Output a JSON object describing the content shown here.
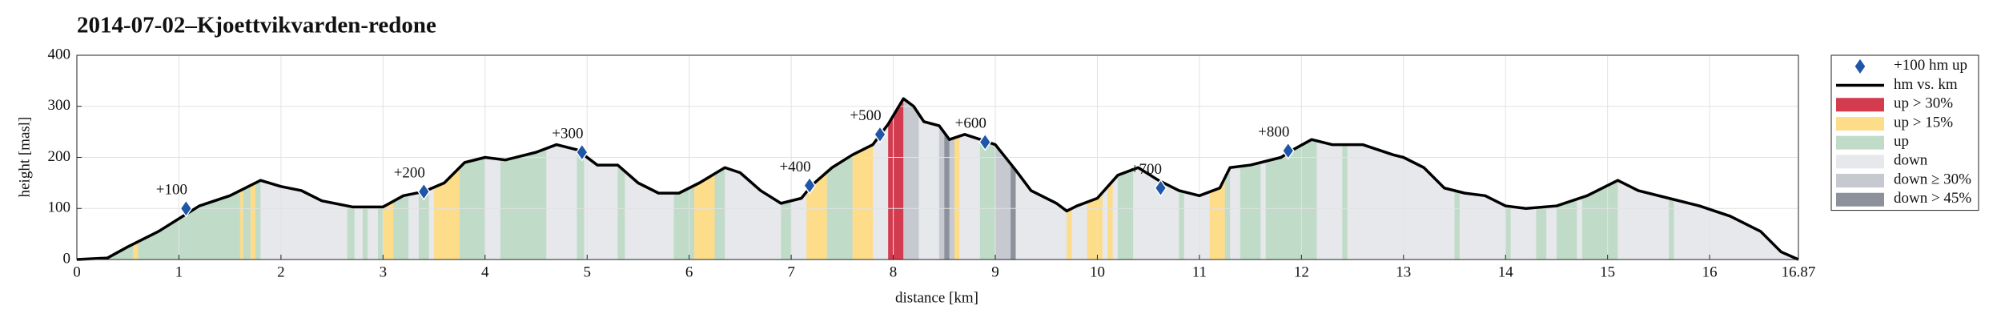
{
  "chart_data": {
    "type": "line",
    "title": "2014-07-02–Kjoettvikvarden-redone",
    "x_label": "distance [km]",
    "y_label": "height [masl]",
    "xlim": [
      0,
      16.87
    ],
    "xticks": [
      0,
      1,
      2,
      3,
      4,
      5,
      6,
      7,
      8,
      9,
      10,
      11,
      12,
      13,
      14,
      15,
      16,
      {
        "value": 16.87,
        "label": "16.87"
      }
    ],
    "ylim": [
      0,
      400
    ],
    "yticks": [
      0,
      100,
      200,
      300,
      400
    ],
    "grid": true,
    "markers": {
      "name": "+100 hm up",
      "color": "#1f56a8",
      "x": [
        1.07,
        3.4,
        4.95,
        7.18,
        7.87,
        8.9,
        10.62,
        11.87
      ],
      "y": [
        100,
        133,
        210,
        145,
        245,
        230,
        140,
        213
      ],
      "labels": [
        "+100",
        "+200",
        "+300",
        "+400",
        "+500",
        "+600",
        "+700",
        "+800"
      ]
    },
    "line": {
      "name": "hm vs. km",
      "color": "#000000",
      "x": [
        0,
        0.3,
        0.5,
        0.8,
        1.0,
        1.2,
        1.5,
        1.8,
        2.0,
        2.2,
        2.4,
        2.7,
        3.0,
        3.2,
        3.4,
        3.6,
        3.8,
        4.0,
        4.2,
        4.5,
        4.7,
        4.9,
        5.1,
        5.3,
        5.5,
        5.7,
        5.9,
        6.1,
        6.35,
        6.5,
        6.7,
        6.9,
        7.1,
        7.2,
        7.4,
        7.6,
        7.8,
        7.95,
        8.1,
        8.2,
        8.3,
        8.45,
        8.55,
        8.7,
        8.9,
        9.0,
        9.2,
        9.35,
        9.6,
        9.7,
        9.8,
        10.0,
        10.2,
        10.4,
        10.6,
        10.8,
        11.0,
        11.2,
        11.3,
        11.5,
        11.8,
        11.9,
        12.1,
        12.3,
        12.6,
        12.9,
        13.0,
        13.2,
        13.4,
        13.6,
        13.8,
        14.0,
        14.2,
        14.5,
        14.8,
        15.0,
        15.1,
        15.3,
        15.6,
        15.9,
        16.2,
        16.5,
        16.7,
        16.87
      ],
      "y": [
        0,
        3,
        25,
        55,
        80,
        105,
        125,
        155,
        143,
        135,
        115,
        103,
        103,
        125,
        133,
        150,
        190,
        200,
        195,
        210,
        225,
        215,
        185,
        185,
        150,
        130,
        130,
        150,
        180,
        170,
        135,
        110,
        120,
        145,
        180,
        205,
        225,
        265,
        315,
        300,
        270,
        262,
        235,
        245,
        232,
        225,
        175,
        135,
        110,
        95,
        105,
        120,
        165,
        180,
        155,
        135,
        125,
        140,
        180,
        185,
        200,
        213,
        235,
        225,
        225,
        205,
        200,
        180,
        140,
        130,
        125,
        105,
        100,
        105,
        125,
        145,
        155,
        135,
        120,
        105,
        85,
        55,
        15,
        0
      ]
    },
    "areas": [
      {
        "name": "up > 30%",
        "color": "#d33c4f",
        "ranges": [
          [
            7.95,
            8.1
          ]
        ]
      },
      {
        "name": "up > 15%",
        "color": "#fddc8a",
        "ranges": [
          [
            0.55,
            0.6
          ],
          [
            1.6,
            1.63
          ],
          [
            1.7,
            1.75
          ],
          [
            3.0,
            3.1
          ],
          [
            3.5,
            3.75
          ],
          [
            6.05,
            6.25
          ],
          [
            7.15,
            7.35
          ],
          [
            7.6,
            7.8
          ],
          [
            8.6,
            8.65
          ],
          [
            9.7,
            9.75
          ],
          [
            9.9,
            10.05
          ],
          [
            10.1,
            10.15
          ],
          [
            11.1,
            11.25
          ]
        ]
      },
      {
        "name": "up",
        "color": "#c0dcc8",
        "ranges": [
          [
            0.3,
            0.55
          ],
          [
            0.6,
            1.6
          ],
          [
            1.63,
            1.7
          ],
          [
            1.75,
            1.8
          ],
          [
            2.65,
            2.72
          ],
          [
            2.8,
            2.85
          ],
          [
            2.95,
            3.0
          ],
          [
            3.1,
            3.25
          ],
          [
            3.35,
            3.45
          ],
          [
            3.75,
            4.0
          ],
          [
            4.15,
            4.6
          ],
          [
            4.9,
            4.97
          ],
          [
            5.3,
            5.37
          ],
          [
            5.85,
            6.05
          ],
          [
            6.25,
            6.35
          ],
          [
            6.9,
            7.0
          ],
          [
            7.35,
            7.6
          ],
          [
            8.85,
            9.0
          ],
          [
            10.2,
            10.35
          ],
          [
            10.8,
            10.85
          ],
          [
            11.25,
            11.3
          ],
          [
            11.4,
            11.6
          ],
          [
            11.65,
            12.15
          ],
          [
            12.4,
            12.45
          ],
          [
            13.5,
            13.55
          ],
          [
            14.0,
            14.05
          ],
          [
            14.3,
            14.4
          ],
          [
            14.5,
            14.7
          ],
          [
            14.75,
            15.1
          ],
          [
            15.6,
            15.65
          ]
        ]
      },
      {
        "name": "down",
        "color": "#e6e8eb",
        "ranges": [
          [
            0,
            16.87
          ]
        ]
      },
      {
        "name": "down ≥ 30%",
        "color": "#c6c9d0",
        "ranges": [
          [
            8.1,
            8.25
          ],
          [
            8.45,
            8.5
          ],
          [
            8.55,
            8.6
          ],
          [
            9.0,
            9.15
          ]
        ]
      },
      {
        "name": "down > 45%",
        "color": "#8c919c",
        "ranges": [
          [
            8.5,
            8.55
          ],
          [
            9.15,
            9.2
          ]
        ]
      }
    ]
  }
}
